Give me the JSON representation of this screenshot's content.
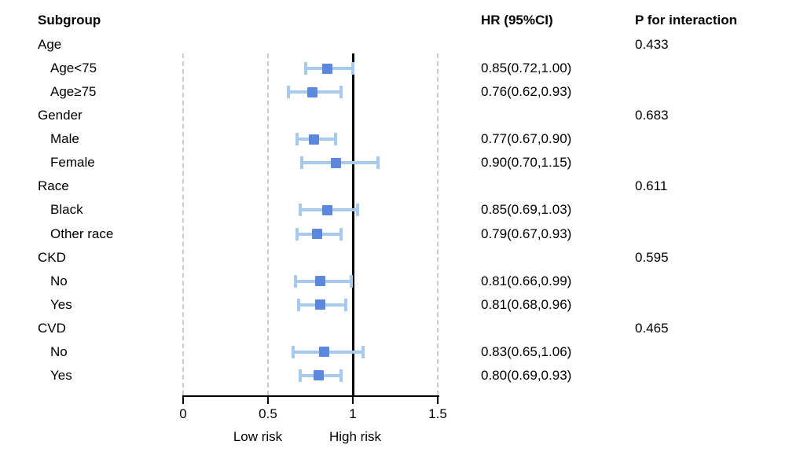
{
  "header": {
    "subgroup_label": "Subgroup",
    "hr_label": "HR (95%CI)",
    "p_label": "P for interaction"
  },
  "axis": {
    "min": 0,
    "max": 1.5,
    "ref_line": 1,
    "ticks": [
      {
        "value": 0,
        "label": "0",
        "dashed": true
      },
      {
        "value": 0.5,
        "label": "0.5",
        "dashed": true
      },
      {
        "value": 1,
        "label": "1",
        "dashed": false
      },
      {
        "value": 1.5,
        "label": "1.5",
        "dashed": true
      }
    ],
    "low_label": "Low risk",
    "high_label": "High risk"
  },
  "colors": {
    "marker": "#5b87dc",
    "ci_line": "#a7c9ec",
    "gridline": "#cccccc",
    "axis": "#000000",
    "text": "#000000"
  },
  "chart_data": {
    "type": "forest",
    "xlabel_left": "Low risk",
    "xlabel_right": "High risk",
    "xlim": [
      0,
      1.5
    ],
    "reference_value": 1,
    "rows": [
      {
        "label": "Age",
        "level": "group",
        "p": "0.433"
      },
      {
        "label": "Age<75",
        "level": "item",
        "hr": 0.85,
        "lo": 0.72,
        "hi": 1.0,
        "hr_text": "0.85(0.72,1.00)"
      },
      {
        "label": "Age≥75",
        "level": "item",
        "hr": 0.76,
        "lo": 0.62,
        "hi": 0.93,
        "hr_text": "0.76(0.62,0.93)"
      },
      {
        "label": "Gender",
        "level": "group",
        "p": "0.683"
      },
      {
        "label": "Male",
        "level": "item",
        "hr": 0.77,
        "lo": 0.67,
        "hi": 0.9,
        "hr_text": "0.77(0.67,0.90)"
      },
      {
        "label": "Female",
        "level": "item",
        "hr": 0.9,
        "lo": 0.7,
        "hi": 1.15,
        "hr_text": "0.90(0.70,1.15)"
      },
      {
        "label": "Race",
        "level": "group",
        "p": "0.611"
      },
      {
        "label": "Black",
        "level": "item",
        "hr": 0.85,
        "lo": 0.69,
        "hi": 1.03,
        "hr_text": "0.85(0.69,1.03)"
      },
      {
        "label": "Other race",
        "level": "item",
        "hr": 0.79,
        "lo": 0.67,
        "hi": 0.93,
        "hr_text": "0.79(0.67,0.93)"
      },
      {
        "label": "CKD",
        "level": "group",
        "p": "0.595"
      },
      {
        "label": "No",
        "level": "item",
        "hr": 0.81,
        "lo": 0.66,
        "hi": 0.99,
        "hr_text": "0.81(0.66,0.99)"
      },
      {
        "label": "Yes",
        "level": "item",
        "hr": 0.81,
        "lo": 0.68,
        "hi": 0.96,
        "hr_text": "0.81(0.68,0.96)"
      },
      {
        "label": "CVD",
        "level": "group",
        "p": "0.465"
      },
      {
        "label": "No",
        "level": "item",
        "hr": 0.83,
        "lo": 0.65,
        "hi": 1.06,
        "hr_text": "0.83(0.65,1.06)"
      },
      {
        "label": "Yes",
        "level": "item",
        "hr": 0.8,
        "lo": 0.69,
        "hi": 0.93,
        "hr_text": "0.80(0.69,0.93)"
      }
    ]
  }
}
